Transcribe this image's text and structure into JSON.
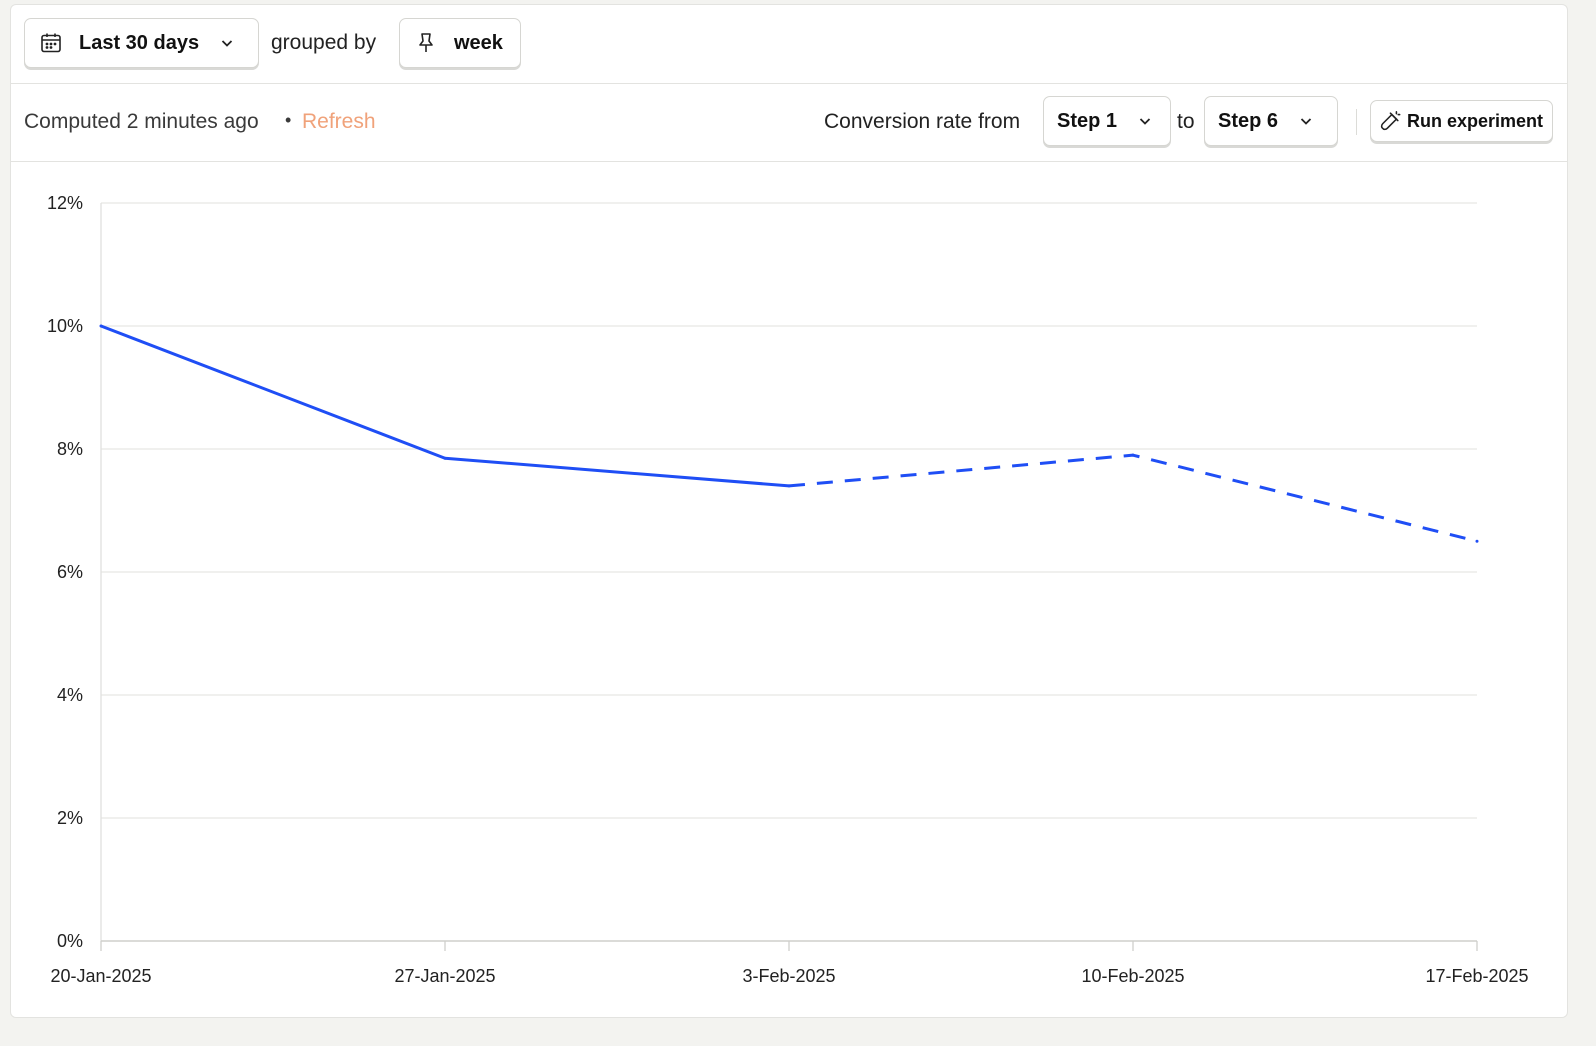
{
  "toolbar": {
    "date_range_label": "Last 30 days",
    "grouped_by_text": "grouped by",
    "interval_label": "week"
  },
  "status": {
    "computed_text": "Computed 2 minutes ago",
    "separator": "•",
    "refresh_label": "Refresh"
  },
  "conversion": {
    "from_text": "Conversion rate from",
    "from_step": "Step 1",
    "to_text": "to",
    "to_step": "Step 6",
    "run_experiment_label": "Run experiment"
  },
  "colors": {
    "line": "#1f4ef5",
    "accent_refresh": "#f0a27a"
  },
  "chart_data": {
    "type": "line",
    "categories": [
      "20-Jan-2025",
      "27-Jan-2025",
      "3-Feb-2025",
      "10-Feb-2025",
      "17-Feb-2025"
    ],
    "series": [
      {
        "values": [
          10.0,
          7.85,
          7.4,
          7.9,
          6.5
        ],
        "dashed_from_index": 2
      }
    ],
    "y_ticks": [
      "0%",
      "2%",
      "4%",
      "6%",
      "8%",
      "10%",
      "12%"
    ],
    "ylim": [
      0,
      12
    ],
    "y_unit": "%",
    "grid": true,
    "legend": "none"
  }
}
